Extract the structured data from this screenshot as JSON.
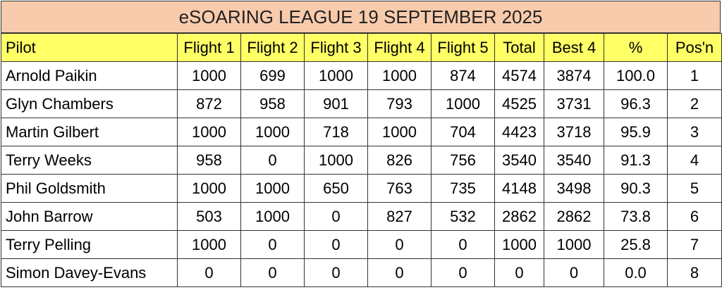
{
  "table": {
    "title": "eSOARING LEAGUE 19 SEPTEMBER 2025",
    "header": [
      "Pilot",
      "Flight 1",
      "Flight 2",
      "Flight 3",
      "Flight 4",
      "Flight 5",
      "Total",
      "Best 4",
      "%",
      "Pos'n"
    ],
    "rows": [
      [
        "Arnold Paikin",
        "1000",
        "699",
        "1000",
        "1000",
        "874",
        "4574",
        "3874",
        "100.0",
        "1"
      ],
      [
        "Glyn Chambers",
        "872",
        "958",
        "901",
        "793",
        "1000",
        "4525",
        "3731",
        "96.3",
        "2"
      ],
      [
        "Martin Gilbert",
        "1000",
        "1000",
        "718",
        "1000",
        "704",
        "4423",
        "3718",
        "95.9",
        "3"
      ],
      [
        "Terry Weeks",
        "958",
        "0",
        "1000",
        "826",
        "756",
        "3540",
        "3540",
        "91.3",
        "4"
      ],
      [
        "Phil Goldsmith",
        "1000",
        "1000",
        "650",
        "763",
        "735",
        "4148",
        "3498",
        "90.3",
        "5"
      ],
      [
        "John Barrow",
        "503",
        "1000",
        "0",
        "827",
        "532",
        "2862",
        "2862",
        "73.8",
        "6"
      ],
      [
        "Terry Pelling",
        "1000",
        "0",
        "0",
        "0",
        "0",
        "1000",
        "1000",
        "25.8",
        "7"
      ],
      [
        "Simon Davey-Evans",
        "0",
        "0",
        "0",
        "0",
        "0",
        "0",
        "0",
        "0.0",
        "8"
      ]
    ]
  }
}
